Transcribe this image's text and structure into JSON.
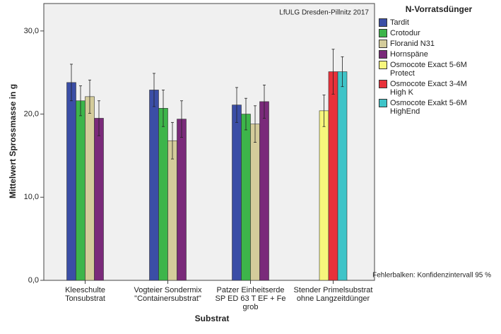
{
  "chart_data": {
    "type": "bar",
    "annotations": [
      "LfULG Dresden-Pillnitz 2017",
      "Fehlerbalken: Konfidenzintervall 95 %"
    ],
    "x_label": "Substrat",
    "y_label": "Mittelwert Sprossmasse in g",
    "legend_title": "N-Vorratsdünger",
    "categories": [
      "Kleeschulte Tonsubstrat",
      "Vogteier Sondermix \"Containersubstrat\"",
      "Patzer Einheitserde SP ED 63 T EF + Fe grob",
      "Stender Primelsubstrat ohne Langzeitdünger"
    ],
    "series": [
      {
        "name": "Tardit",
        "color": "#3b4ea6",
        "values": [
          23.8,
          22.9,
          21.1,
          null
        ],
        "errors": [
          2.2,
          2.0,
          2.1,
          null
        ]
      },
      {
        "name": "Crotodur",
        "color": "#3db54a",
        "values": [
          21.6,
          20.7,
          20.0,
          null
        ],
        "errors": [
          1.8,
          2.2,
          1.9,
          null
        ]
      },
      {
        "name": "Floranid N31",
        "color": "#d4cc9b",
        "values": [
          22.1,
          16.8,
          18.8,
          null
        ],
        "errors": [
          2.0,
          2.2,
          2.2,
          null
        ]
      },
      {
        "name": "Hornspäne",
        "color": "#7a2a7a",
        "values": [
          19.5,
          19.4,
          21.5,
          null
        ],
        "errors": [
          2.1,
          2.2,
          2.0,
          null
        ]
      },
      {
        "name": "Osmocote Exact 5-6M Protect",
        "color": "#f6f67c",
        "values": [
          null,
          null,
          null,
          20.4
        ],
        "errors": [
          null,
          null,
          null,
          1.9
        ]
      },
      {
        "name": "Osmocote Exact 3-4M High K",
        "color": "#e8313a",
        "values": [
          null,
          null,
          null,
          25.1
        ],
        "errors": [
          null,
          null,
          null,
          2.7
        ]
      },
      {
        "name": "Osmocote Exakt 5-6M HighEnd",
        "color": "#3ec4c8",
        "values": [
          null,
          null,
          null,
          25.1
        ],
        "errors": [
          null,
          null,
          null,
          1.8
        ]
      }
    ],
    "ylim": [
      0,
      33.3
    ],
    "yticks": [
      {
        "value": 0,
        "label": "0,0"
      },
      {
        "value": 10,
        "label": "10,0"
      },
      {
        "value": 20,
        "label": "20,0"
      },
      {
        "value": 30,
        "label": "30,0"
      }
    ]
  }
}
